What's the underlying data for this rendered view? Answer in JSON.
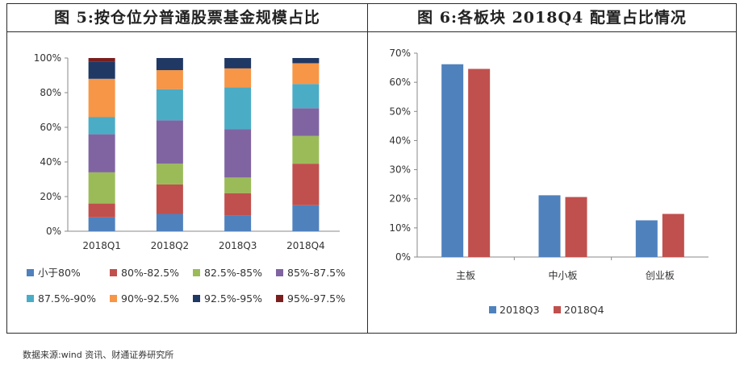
{
  "left_title": "图 5:按仓位分普通股票基金规模占比",
  "right_title": "图 6:各板块 2018Q4 配置占比情况",
  "source": "数据来源:wind 资讯、财通证券研究所",
  "chart_data": [
    {
      "type": "bar",
      "stacked": true,
      "title": "图 5:按仓位分普通股票基金规模占比",
      "categories": [
        "2018Q1",
        "2018Q2",
        "2018Q3",
        "2018Q4"
      ],
      "ylim": [
        0,
        100
      ],
      "yticks": [
        "0%",
        "20%",
        "40%",
        "60%",
        "80%",
        "100%"
      ],
      "legend_position": "bottom",
      "grid": false,
      "series": [
        {
          "name": "小于80%",
          "color": "#4f81bd",
          "values": [
            8,
            10,
            9,
            15
          ]
        },
        {
          "name": "80%-82.5%",
          "color": "#c0504d",
          "values": [
            8,
            17,
            13,
            24
          ]
        },
        {
          "name": "82.5%-85%",
          "color": "#9bbb59",
          "values": [
            18,
            12,
            9,
            16
          ]
        },
        {
          "name": "85%-87.5%",
          "color": "#8064a2",
          "values": [
            22,
            25,
            28,
            16
          ]
        },
        {
          "name": "87.5%-90%",
          "color": "#4bacc6",
          "values": [
            10,
            18,
            24,
            14
          ]
        },
        {
          "name": "90%-92.5%",
          "color": "#f79646",
          "values": [
            22,
            11,
            11,
            12
          ]
        },
        {
          "name": "92.5%-95%",
          "color": "#1f3864",
          "values": [
            10,
            7,
            6,
            3
          ]
        },
        {
          "name": "95%-97.5%",
          "color": "#7a1f1f",
          "values": [
            2,
            0,
            0,
            0
          ]
        }
      ]
    },
    {
      "type": "bar",
      "title": "图 6:各板块 2018Q4 配置占比情况",
      "categories": [
        "主板",
        "中小板",
        "创业板"
      ],
      "ylim": [
        0,
        70
      ],
      "yticks": [
        "0%",
        "10%",
        "20%",
        "30%",
        "40%",
        "50%",
        "60%",
        "70%"
      ],
      "legend_position": "bottom",
      "grid": false,
      "series": [
        {
          "name": "2018Q3",
          "color": "#4f81bd",
          "values": [
            66.2,
            21.2,
            12.6
          ]
        },
        {
          "name": "2018Q4",
          "color": "#c0504d",
          "values": [
            64.6,
            20.6,
            14.8
          ]
        }
      ]
    }
  ]
}
